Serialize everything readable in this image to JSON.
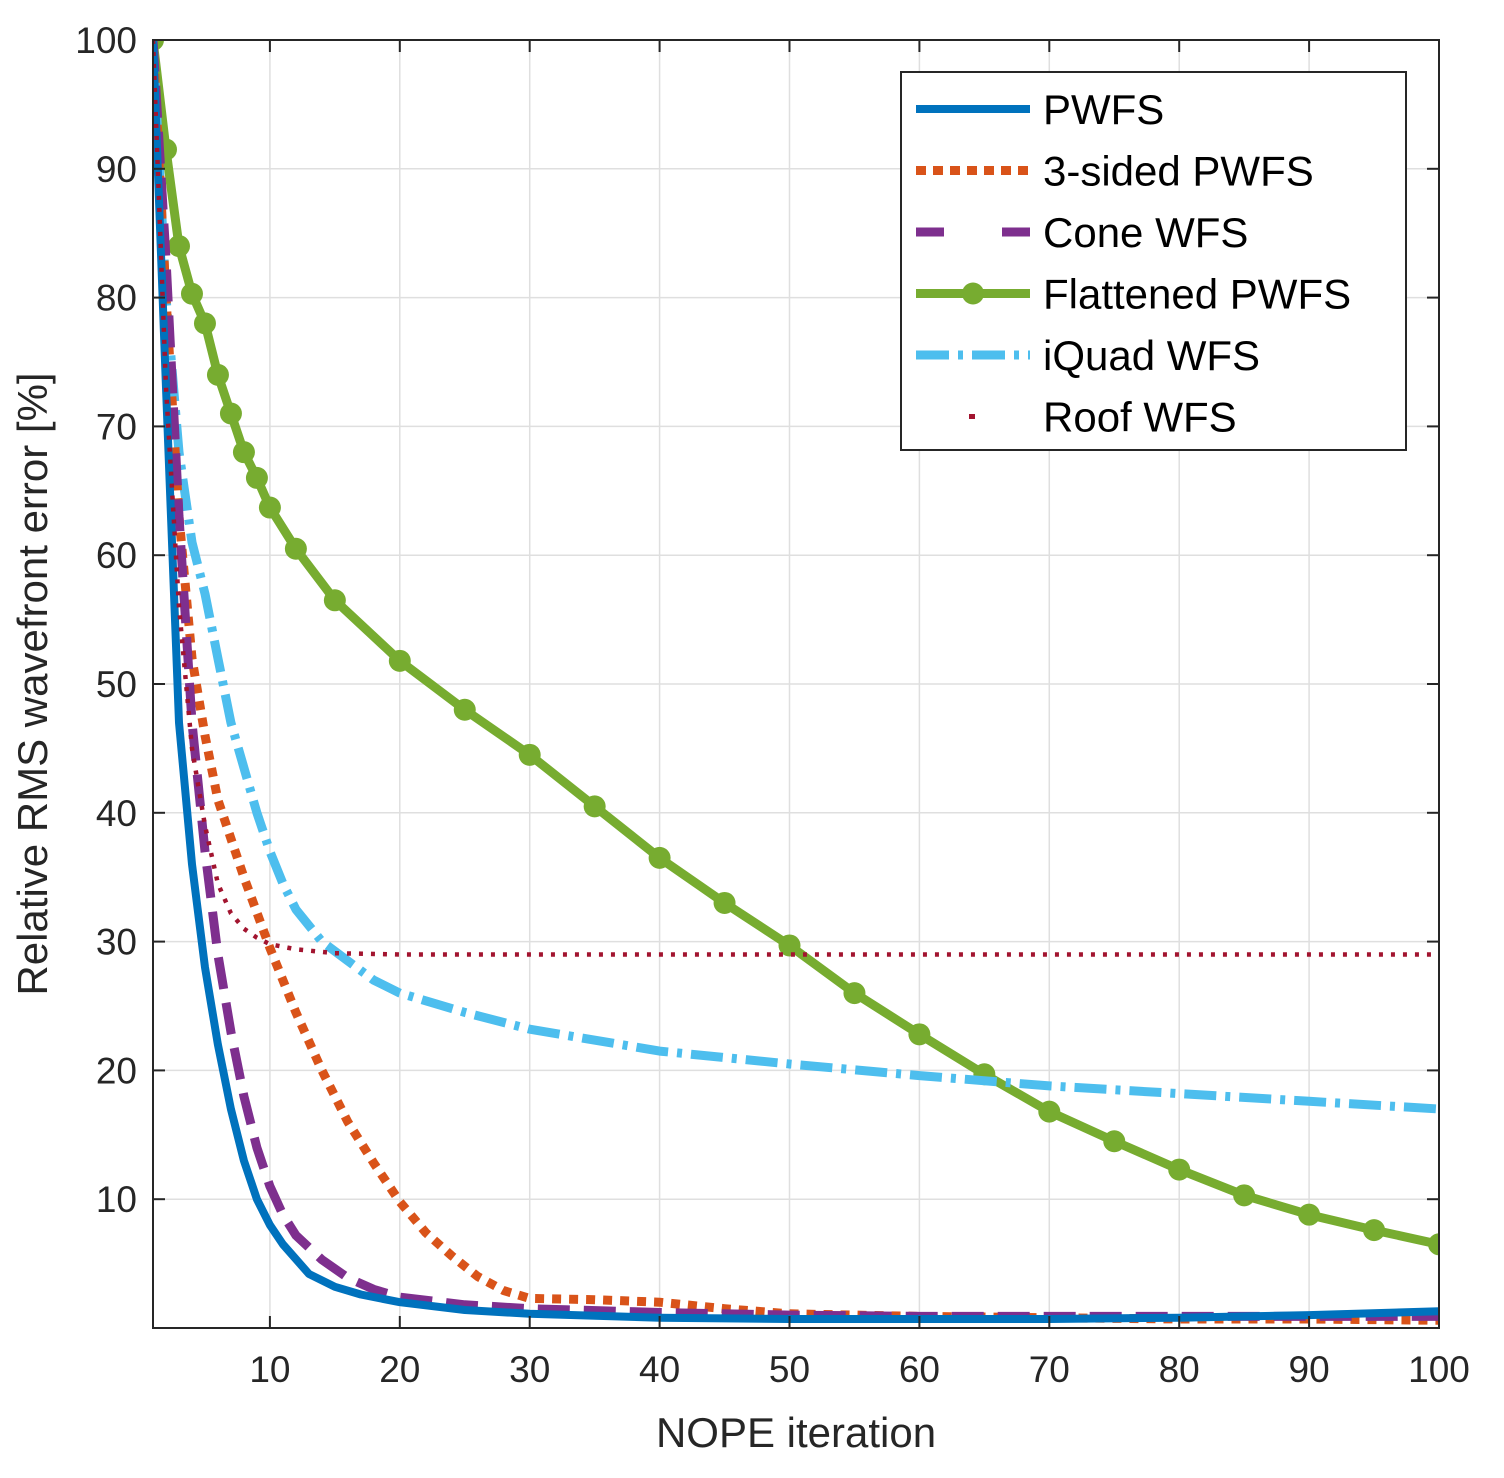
{
  "chart_data": {
    "type": "line",
    "title": "",
    "xlabel": "NOPE iteration",
    "ylabel": "Relative RMS wavefront error [%]",
    "xlim": [
      1,
      100
    ],
    "ylim": [
      0,
      100
    ],
    "xticks": [
      10,
      20,
      30,
      40,
      50,
      60,
      70,
      80,
      90,
      100
    ],
    "yticks": [
      10,
      20,
      30,
      40,
      50,
      60,
      70,
      80,
      90,
      100
    ],
    "grid": true,
    "legend_position": "top-right",
    "series": [
      {
        "name": "PWFS",
        "color": "#0072BD",
        "style": "solid",
        "x": [
          1,
          2,
          3,
          4,
          5,
          6,
          7,
          8,
          9,
          10,
          11,
          13,
          15,
          17,
          20,
          25,
          30,
          40,
          50,
          60,
          70,
          80,
          90,
          100
        ],
        "y": [
          100,
          73,
          47,
          36,
          28,
          22,
          17,
          13,
          10,
          8,
          6.5,
          4.2,
          3.2,
          2.6,
          2.0,
          1.4,
          1.1,
          0.8,
          0.7,
          0.7,
          0.7,
          0.8,
          1.0,
          1.3
        ]
      },
      {
        "name": "3-sided PWFS",
        "color": "#D95319",
        "style": "dotted",
        "x": [
          1,
          2,
          3,
          4,
          5,
          6,
          8,
          10,
          12,
          14,
          16,
          18,
          20,
          22,
          24,
          26,
          28,
          30,
          35,
          40,
          45,
          50,
          60,
          70,
          80,
          90,
          100
        ],
        "y": [
          100,
          80,
          63,
          52,
          46,
          41,
          35,
          29.5,
          24.5,
          20,
          16,
          12.8,
          9.8,
          7.4,
          5.6,
          4.0,
          2.9,
          2.3,
          2.2,
          2.0,
          1.5,
          1.1,
          0.9,
          0.8,
          0.7,
          0.7,
          0.6
        ]
      },
      {
        "name": "Cone WFS",
        "color": "#7E2F8E",
        "style": "dashed",
        "x": [
          1,
          2,
          3,
          4,
          5,
          6,
          7,
          8,
          9,
          10,
          11,
          12,
          14,
          16,
          18,
          20,
          25,
          30,
          40,
          50,
          60,
          70,
          80,
          90,
          100
        ],
        "y": [
          100,
          83,
          63,
          47,
          37,
          29,
          23,
          18,
          14,
          11,
          8.8,
          7.2,
          5.3,
          3.9,
          3.0,
          2.4,
          1.8,
          1.5,
          1.2,
          1.0,
          0.9,
          0.9,
          0.9,
          0.9,
          0.9
        ]
      },
      {
        "name": "Flattened PWFS",
        "color": "#77AC30",
        "style": "solid-marker",
        "x": [
          1,
          2,
          3,
          4,
          5,
          6,
          7,
          8,
          9,
          10,
          12,
          15,
          20,
          25,
          30,
          35,
          40,
          45,
          50,
          55,
          60,
          65,
          70,
          75,
          80,
          85,
          90,
          95,
          100
        ],
        "y": [
          100,
          91.5,
          84,
          80.3,
          78,
          74,
          71,
          68,
          66,
          63.7,
          60.5,
          56.5,
          51.8,
          48,
          44.5,
          40.5,
          36.5,
          33,
          29.7,
          26,
          22.8,
          19.7,
          16.8,
          14.5,
          12.3,
          10.3,
          8.8,
          7.6,
          6.5
        ]
      },
      {
        "name": "iQuad WFS",
        "color": "#4DBEEE",
        "style": "dash-dot",
        "x": [
          1,
          2,
          3,
          4,
          5,
          6,
          7,
          8,
          9,
          10,
          11,
          12,
          14,
          16,
          18,
          20,
          25,
          30,
          40,
          50,
          60,
          70,
          80,
          90,
          100
        ],
        "y": [
          100,
          80,
          68,
          61,
          57,
          52,
          47,
          43.5,
          40,
          37,
          34.5,
          32.5,
          30,
          28.5,
          27,
          26,
          24.5,
          23.2,
          21.5,
          20.5,
          19.6,
          18.8,
          18.2,
          17.6,
          17
        ]
      },
      {
        "name": "Roof WFS",
        "color": "#A2142F",
        "style": "dotted-thin",
        "x": [
          1,
          2,
          3,
          4,
          5,
          6,
          7,
          8,
          9,
          10,
          12,
          15,
          20,
          30,
          40,
          50,
          60,
          70,
          80,
          90,
          100
        ],
        "y": [
          100,
          73,
          56,
          45,
          39,
          34.5,
          32.2,
          31,
          30.3,
          29.8,
          29.4,
          29.1,
          29.0,
          29.0,
          29.0,
          29.0,
          29.0,
          29.0,
          29.0,
          29.0,
          29.0
        ]
      }
    ]
  }
}
